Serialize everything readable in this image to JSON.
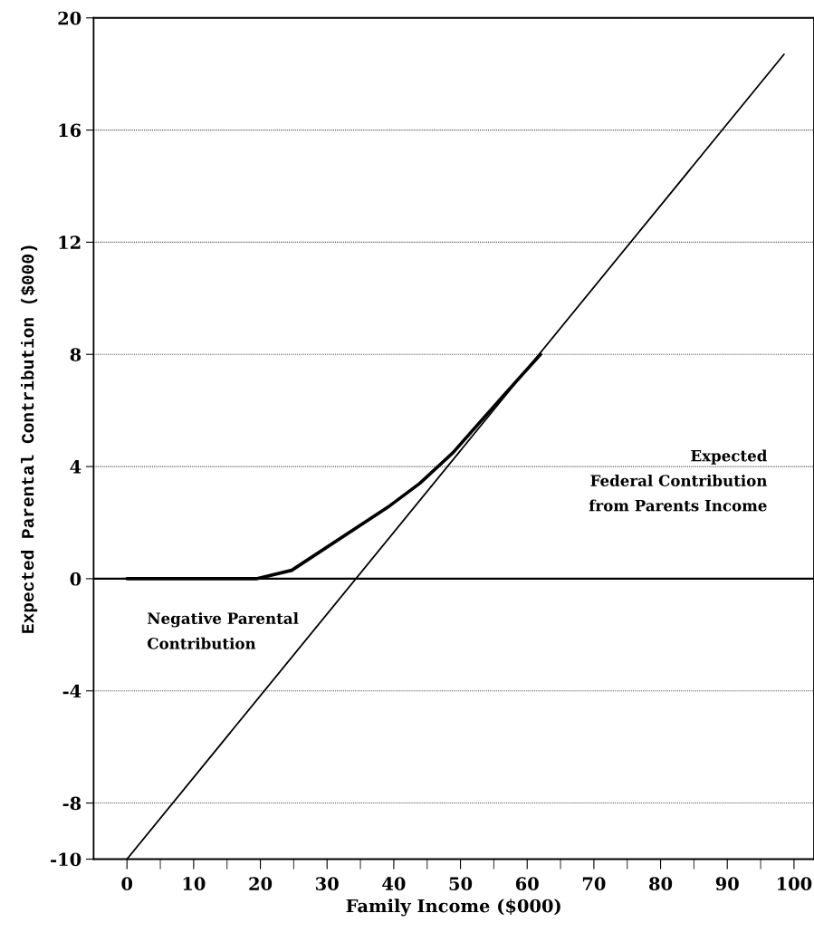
{
  "chart_data": {
    "type": "line",
    "xlabel": "Family Income ($000)",
    "ylabel": "Expected Parental Contribution ($000)",
    "series": [
      {
        "color": "#000000",
        "x": [
          0,
          98.5
        ],
        "values": [
          -10,
          18.7
        ]
      },
      {
        "color": "#000000",
        "x": [
          0,
          19.4,
          24.7,
          39.4,
          43.9,
          48.9,
          56.7,
          62
        ],
        "values": [
          0,
          0,
          0.3,
          2.6,
          3.4,
          4.5,
          6.6,
          8.0
        ]
      }
    ],
    "xlim": [
      -5,
      103
    ],
    "ylim": [
      -10,
      20
    ],
    "xticks": [
      0,
      {
        "value": 5,
        "label": null
      },
      10,
      {
        "value": 15,
        "label": null
      },
      20,
      {
        "value": 25,
        "label": null
      },
      30,
      {
        "value": 35,
        "label": null
      },
      40,
      {
        "value": 45,
        "label": null
      },
      50,
      {
        "value": 55,
        "label": null
      },
      60,
      {
        "value": 65,
        "label": null
      },
      70,
      {
        "value": 75,
        "label": null
      },
      80,
      {
        "value": 85,
        "label": null
      },
      90,
      {
        "value": 95,
        "label": null
      },
      100
    ],
    "yticks": [
      -10,
      -8,
      -4,
      0,
      4,
      8,
      12,
      16,
      20
    ],
    "grid": "y",
    "marker": "none",
    "line_style": "solid",
    "ref_lines": [
      {
        "axis": "y",
        "value": 0,
        "color": "#000000",
        "line_style": "solid"
      }
    ],
    "annotations": [
      "Expected\nFederal Contribution\nfrom Parents Income",
      "Negative Parental\nContribution"
    ]
  }
}
